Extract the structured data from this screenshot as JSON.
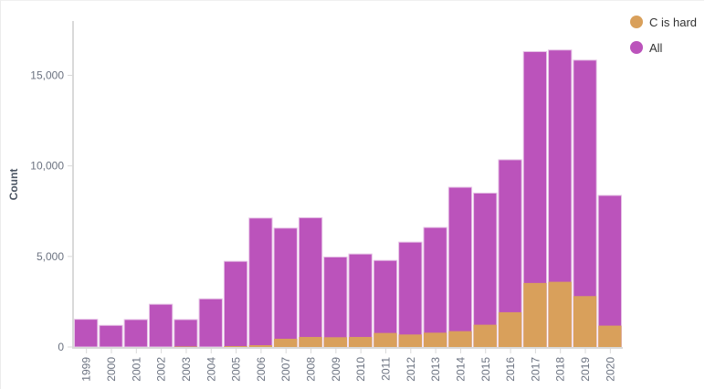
{
  "chart_data": {
    "type": "bar",
    "title": "",
    "xlabel": "",
    "ylabel": "Count",
    "ylim": [
      0,
      18000
    ],
    "yticks": [
      0,
      5000,
      10000,
      15000
    ],
    "ytick_labels": [
      "0",
      "5,000",
      "10,000",
      "15,000"
    ],
    "grid": false,
    "legend_position": "top-right",
    "categories": [
      "1999",
      "2000",
      "2001",
      "2002",
      "2003",
      "2004",
      "2005",
      "2006",
      "2007",
      "2008",
      "2009",
      "2010",
      "2011",
      "2012",
      "2013",
      "2014",
      "2015",
      "2016",
      "2017",
      "2018",
      "2019",
      "2020"
    ],
    "series": [
      {
        "name": "All",
        "color": "#bb53bb",
        "values": [
          1530,
          1195,
          1515,
          2360,
          1515,
          2660,
          4730,
          7120,
          6565,
          7140,
          4970,
          5135,
          4780,
          5790,
          6600,
          8820,
          8500,
          10340,
          16310,
          16400,
          15840,
          8370
        ]
      },
      {
        "name": "C is hard",
        "color": "#d9a05b",
        "values": [
          0,
          0,
          0,
          0,
          30,
          0,
          50,
          100,
          455,
          555,
          540,
          555,
          775,
          690,
          790,
          875,
          1230,
          1920,
          3535,
          3600,
          2810,
          1180
        ]
      }
    ],
    "legend": [
      "C is hard",
      "All"
    ]
  }
}
